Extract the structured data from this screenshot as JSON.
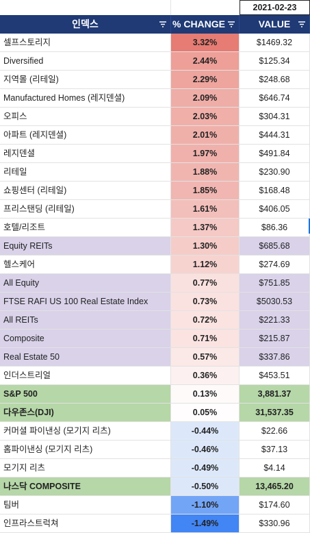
{
  "date": "2021-02-23",
  "header": {
    "col1": "인덱스",
    "col2": "% CHANGE",
    "col3": "VALUE"
  },
  "colors": {
    "header_bg": "#1f3a75",
    "purple_row": "#d9d2e9",
    "green_row": "#b6d7a8"
  },
  "icons": {
    "filter": "filter-icon"
  },
  "rows": [
    {
      "name": "셀프스토리지",
      "change": "3.32%",
      "value": "$1469.32",
      "change_pct": 3.32,
      "group": "none"
    },
    {
      "name": "Diversified",
      "change": "2.44%",
      "value": "$125.34",
      "change_pct": 2.44,
      "group": "none"
    },
    {
      "name": "지역몰 (리테일)",
      "change": "2.29%",
      "value": "$248.68",
      "change_pct": 2.29,
      "group": "none"
    },
    {
      "name": "Manufactured Homes (레지덴셜)",
      "change": "2.09%",
      "value": "$646.74",
      "change_pct": 2.09,
      "group": "none"
    },
    {
      "name": "오피스",
      "change": "2.03%",
      "value": "$304.31",
      "change_pct": 2.03,
      "group": "none"
    },
    {
      "name": "아파트 (레지덴셜)",
      "change": "2.01%",
      "value": "$444.31",
      "change_pct": 2.01,
      "group": "none"
    },
    {
      "name": "레지덴셜",
      "change": "1.97%",
      "value": "$491.84",
      "change_pct": 1.97,
      "group": "none"
    },
    {
      "name": "리테일",
      "change": "1.88%",
      "value": "$230.90",
      "change_pct": 1.88,
      "group": "none"
    },
    {
      "name": "쇼핑센터 (리테일)",
      "change": "1.85%",
      "value": "$168.48",
      "change_pct": 1.85,
      "group": "none"
    },
    {
      "name": "프리스탠딩 (리테일)",
      "change": "1.61%",
      "value": "$406.05",
      "change_pct": 1.61,
      "group": "none"
    },
    {
      "name": "호텔/리조트",
      "change": "1.37%",
      "value": "$86.36",
      "change_pct": 1.37,
      "group": "none"
    },
    {
      "name": "Equity REITs",
      "change": "1.30%",
      "value": "$685.68",
      "change_pct": 1.3,
      "group": "purple"
    },
    {
      "name": "헬스케어",
      "change": "1.12%",
      "value": "$274.69",
      "change_pct": 1.12,
      "group": "none"
    },
    {
      "name": "All Equity",
      "change": "0.77%",
      "value": "$751.85",
      "change_pct": 0.77,
      "group": "purple"
    },
    {
      "name": "FTSE RAFI US 100 Real Estate Index",
      "change": "0.73%",
      "value": "$5030.53",
      "change_pct": 0.73,
      "group": "purple"
    },
    {
      "name": "All REITs",
      "change": "0.72%",
      "value": "$221.33",
      "change_pct": 0.72,
      "group": "purple"
    },
    {
      "name": "Composite",
      "change": "0.71%",
      "value": "$215.87",
      "change_pct": 0.71,
      "group": "purple"
    },
    {
      "name": "Real Estate 50",
      "change": "0.57%",
      "value": "$337.86",
      "change_pct": 0.57,
      "group": "purple"
    },
    {
      "name": "인더스트리얼",
      "change": "0.36%",
      "value": "$453.51",
      "change_pct": 0.36,
      "group": "none"
    },
    {
      "name": "S&P 500",
      "change": "0.13%",
      "value": "3,881.37",
      "change_pct": 0.13,
      "group": "green"
    },
    {
      "name": "다우존스(DJI)",
      "change": "0.05%",
      "value": "31,537.35",
      "change_pct": 0.05,
      "group": "green"
    },
    {
      "name": "커머셜 파이낸싱 (모기지 리츠)",
      "change": "-0.44%",
      "value": "$22.66",
      "change_pct": -0.44,
      "group": "none"
    },
    {
      "name": "홈파이낸싱 (모기지 리츠)",
      "change": "-0.46%",
      "value": "$37.13",
      "change_pct": -0.46,
      "group": "none"
    },
    {
      "name": "모기지 리츠",
      "change": "-0.49%",
      "value": "$4.14",
      "change_pct": -0.49,
      "group": "none"
    },
    {
      "name": "나스닥 COMPOSITE",
      "change": "-0.50%",
      "value": "13,465.20",
      "change_pct": -0.5,
      "group": "green"
    },
    {
      "name": "팀버",
      "change": "-1.10%",
      "value": "$174.60",
      "change_pct": -1.1,
      "group": "none"
    },
    {
      "name": "인프라스트럭쳐",
      "change": "-1.49%",
      "value": "$330.96",
      "change_pct": -1.49,
      "group": "none"
    }
  ]
}
